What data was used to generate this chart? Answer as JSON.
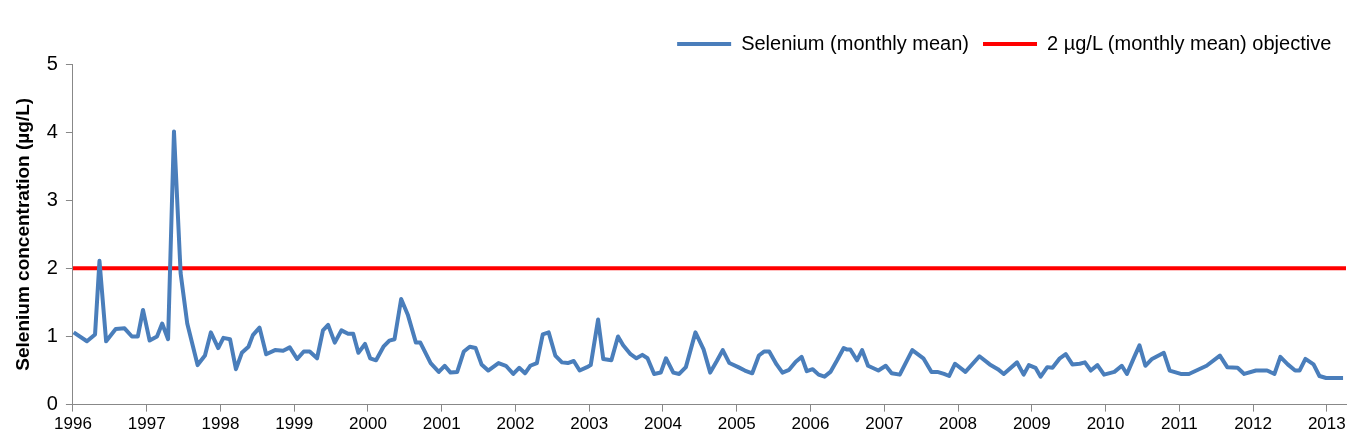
{
  "chart_data": {
    "type": "line",
    "ylabel": "Selenium concentration (µg/L)",
    "xlim": [
      1996,
      2013.26
    ],
    "xticks": [
      1996,
      1997,
      1998,
      1999,
      2000,
      2001,
      2002,
      2003,
      2004,
      2005,
      2006,
      2007,
      2008,
      2009,
      2010,
      2011,
      2012,
      2013
    ],
    "ylim": [
      0,
      5
    ],
    "yticks": [
      0,
      1,
      2,
      3,
      4,
      5
    ],
    "grid": false,
    "legend": "top right",
    "marker": "none",
    "line_style": "solid",
    "series": [
      {
        "name": "Selenium (monthly mean)",
        "color": "#4a7ebb",
        "x": [
          1996.01,
          1996.19,
          1996.3,
          1996.36,
          1996.45,
          1996.58,
          1996.7,
          1996.8,
          1996.88,
          1996.95,
          1997.04,
          1997.14,
          1997.21,
          1997.29,
          1997.37,
          1997.46,
          1997.55,
          1997.69,
          1997.79,
          1997.87,
          1997.97,
          1998.04,
          1998.13,
          1998.21,
          1998.29,
          1998.38,
          1998.44,
          1998.53,
          1998.62,
          1998.74,
          1998.85,
          1998.94,
          1999.04,
          1999.13,
          1999.21,
          1999.31,
          1999.39,
          1999.46,
          1999.55,
          1999.64,
          1999.73,
          1999.8,
          1999.87,
          1999.96,
          2000.03,
          2000.11,
          2000.21,
          2000.29,
          2000.36,
          2000.45,
          2000.54,
          2000.65,
          2000.71,
          2000.85,
          2000.96,
          2001.04,
          2001.12,
          2001.21,
          2001.3,
          2001.38,
          2001.46,
          2001.54,
          2001.63,
          2001.77,
          2001.87,
          2001.97,
          2002.05,
          2002.13,
          2002.2,
          2002.29,
          2002.37,
          2002.45,
          2002.54,
          2002.63,
          2002.71,
          2002.79,
          2002.87,
          2002.97,
          2003.02,
          2003.12,
          2003.19,
          2003.3,
          2003.39,
          2003.46,
          2003.56,
          2003.64,
          2003.72,
          2003.79,
          2003.88,
          2003.97,
          2004.04,
          2004.14,
          2004.22,
          2004.31,
          2004.44,
          2004.55,
          2004.64,
          2004.73,
          2004.81,
          2004.9,
          2005.02,
          2005.11,
          2005.21,
          2005.3,
          2005.37,
          2005.44,
          2005.54,
          2005.62,
          2005.71,
          2005.8,
          2005.88,
          2005.95,
          2006.03,
          2006.11,
          2006.19,
          2006.27,
          2006.36,
          2006.45,
          2006.49,
          2006.54,
          2006.63,
          2006.7,
          2006.78,
          2006.92,
          2007.02,
          2007.1,
          2007.21,
          2007.38,
          2007.53,
          2007.64,
          2007.72,
          2007.81,
          2007.88,
          2007.96,
          2008.1,
          2008.29,
          2008.43,
          2008.54,
          2008.62,
          2008.8,
          2008.89,
          2008.96,
          2009.05,
          2009.12,
          2009.21,
          2009.28,
          2009.38,
          2009.46,
          2009.55,
          2009.65,
          2009.72,
          2009.8,
          2009.89,
          2009.98,
          2010.12,
          2010.22,
          2010.29,
          2010.39,
          2010.46,
          2010.54,
          2010.63,
          2010.79,
          2010.87,
          2011.02,
          2011.13,
          2011.37,
          2011.55,
          2011.65,
          2011.79,
          2011.88,
          2012.04,
          2012.19,
          2012.29,
          2012.37,
          2012.47,
          2012.57,
          2012.63,
          2012.71,
          2012.82,
          2012.9,
          2012.99,
          2013.22
        ],
        "values": [
          1.06,
          0.93,
          1.03,
          2.11,
          0.93,
          1.11,
          1.12,
          1.0,
          1.0,
          1.39,
          0.94,
          1.0,
          1.19,
          0.96,
          4.01,
          1.93,
          1.19,
          0.58,
          0.72,
          1.06,
          0.83,
          0.98,
          0.96,
          0.52,
          0.76,
          0.85,
          1.02,
          1.13,
          0.74,
          0.8,
          0.79,
          0.84,
          0.67,
          0.78,
          0.78,
          0.68,
          1.09,
          1.17,
          0.91,
          1.09,
          1.04,
          1.04,
          0.76,
          0.89,
          0.68,
          0.65,
          0.85,
          0.94,
          0.96,
          1.55,
          1.32,
          0.91,
          0.91,
          0.61,
          0.48,
          0.57,
          0.47,
          0.48,
          0.78,
          0.85,
          0.83,
          0.59,
          0.5,
          0.61,
          0.57,
          0.45,
          0.54,
          0.46,
          0.57,
          0.61,
          1.03,
          1.06,
          0.72,
          0.62,
          0.61,
          0.64,
          0.5,
          0.55,
          0.58,
          1.25,
          0.67,
          0.65,
          1.0,
          0.87,
          0.74,
          0.68,
          0.73,
          0.68,
          0.45,
          0.47,
          0.68,
          0.47,
          0.45,
          0.55,
          1.06,
          0.81,
          0.47,
          0.64,
          0.8,
          0.61,
          0.55,
          0.5,
          0.46,
          0.72,
          0.78,
          0.78,
          0.59,
          0.47,
          0.51,
          0.63,
          0.7,
          0.49,
          0.52,
          0.44,
          0.41,
          0.48,
          0.65,
          0.83,
          0.81,
          0.81,
          0.65,
          0.8,
          0.57,
          0.5,
          0.57,
          0.46,
          0.44,
          0.8,
          0.68,
          0.48,
          0.48,
          0.45,
          0.42,
          0.6,
          0.48,
          0.71,
          0.59,
          0.52,
          0.45,
          0.62,
          0.44,
          0.58,
          0.54,
          0.41,
          0.55,
          0.54,
          0.68,
          0.74,
          0.59,
          0.6,
          0.62,
          0.5,
          0.58,
          0.44,
          0.48,
          0.57,
          0.45,
          0.7,
          0.87,
          0.57,
          0.67,
          0.76,
          0.5,
          0.45,
          0.45,
          0.57,
          0.72,
          0.55,
          0.54,
          0.45,
          0.5,
          0.5,
          0.45,
          0.7,
          0.59,
          0.5,
          0.5,
          0.67,
          0.59,
          0.42,
          0.39,
          0.39
        ]
      },
      {
        "name": "2 µg/L (monthly mean) objective",
        "color": "#ff0000",
        "x": [
          1996,
          2013.26
        ],
        "values": [
          2,
          2
        ]
      }
    ]
  }
}
